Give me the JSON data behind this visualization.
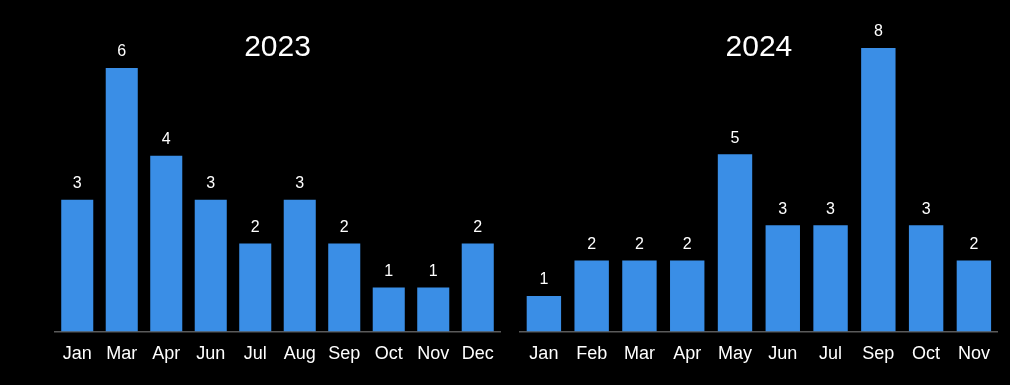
{
  "chart_data": [
    {
      "type": "bar",
      "title": "2023",
      "categories": [
        "Jan",
        "Mar",
        "Apr",
        "Jun",
        "Jul",
        "Aug",
        "Sep",
        "Oct",
        "Nov",
        "Dec"
      ],
      "values": [
        3,
        6,
        4,
        3,
        2,
        3,
        2,
        1,
        1,
        2
      ],
      "color": "#3a8ee6",
      "data_labels": true,
      "tick_labels": "x"
    },
    {
      "type": "bar",
      "title": "2024",
      "categories": [
        "Jan",
        "Feb",
        "Mar",
        "Apr",
        "May",
        "Jun",
        "Jul",
        "Sep",
        "Oct",
        "Nov"
      ],
      "values": [
        1,
        2,
        2,
        2,
        5,
        3,
        3,
        8,
        3,
        2
      ],
      "color": "#3a8ee6",
      "data_labels": true,
      "tick_labels": "x"
    }
  ]
}
